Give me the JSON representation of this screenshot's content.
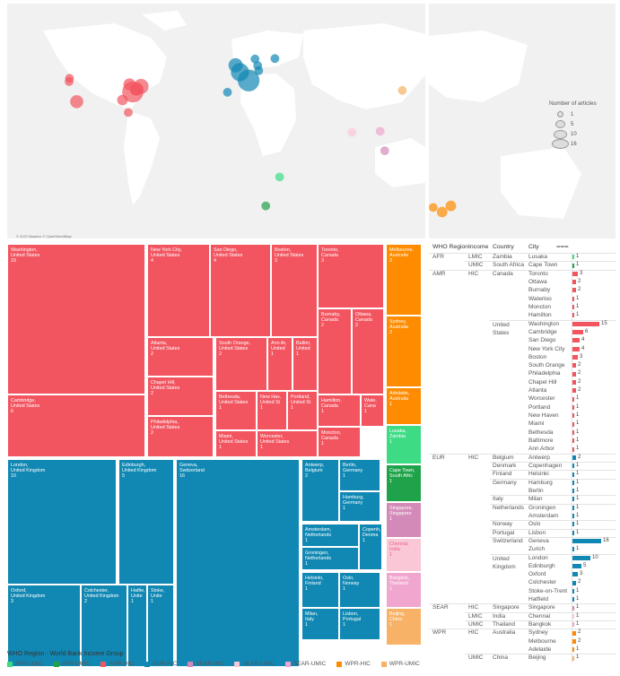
{
  "map": {
    "attribution": "© 2022 Mapbox © OpenStreetMap",
    "size_legend_title": "Number of articles",
    "size_legend_values": [
      "1",
      "5",
      "10",
      "16"
    ],
    "bubbles": [
      {
        "lon": -77.0,
        "lat": 38.9,
        "count": 15,
        "group": "AMR-HIC"
      },
      {
        "lon": -71.1,
        "lat": 42.4,
        "count": 6,
        "group": "AMR-HIC"
      },
      {
        "lon": -79.4,
        "lat": 43.7,
        "count": 3,
        "group": "AMR-HIC"
      },
      {
        "lon": -74.0,
        "lat": 40.7,
        "count": 4,
        "group": "AMR-HIC"
      },
      {
        "lon": -117.2,
        "lat": 32.7,
        "count": 4,
        "group": "AMR-HIC"
      },
      {
        "lon": -122.4,
        "lat": 47.6,
        "count": 1,
        "group": "AMR-HIC"
      },
      {
        "lon": -122.7,
        "lat": 45.5,
        "count": 1,
        "group": "AMR-HIC"
      },
      {
        "lon": -80.2,
        "lat": 25.8,
        "count": 1,
        "group": "AMR-HIC"
      },
      {
        "lon": -84.4,
        "lat": 33.7,
        "count": 2,
        "group": "AMR-HIC"
      },
      {
        "lon": -75.2,
        "lat": 40.0,
        "count": 2,
        "group": "AMR-HIC"
      },
      {
        "lon": 6.1,
        "lat": 46.2,
        "count": 16,
        "group": "EUR-HIC"
      },
      {
        "lon": -0.1,
        "lat": 51.5,
        "count": 10,
        "group": "EUR-HIC"
      },
      {
        "lon": -3.2,
        "lat": 55.9,
        "count": 5,
        "group": "EUR-HIC"
      },
      {
        "lon": 13.4,
        "lat": 52.5,
        "count": 1,
        "group": "EUR-HIC"
      },
      {
        "lon": 25.0,
        "lat": 60.2,
        "count": 1,
        "group": "EUR-HIC"
      },
      {
        "lon": 10.7,
        "lat": 59.9,
        "count": 1,
        "group": "EUR-HIC"
      },
      {
        "lon": 12.6,
        "lat": 55.7,
        "count": 1,
        "group": "EUR-HIC"
      },
      {
        "lon": -9.1,
        "lat": 38.7,
        "count": 1,
        "group": "EUR-HIC"
      },
      {
        "lon": 151.2,
        "lat": -33.9,
        "count": 2,
        "group": "WPR-HIC"
      },
      {
        "lon": 145.0,
        "lat": -37.8,
        "count": 2,
        "group": "WPR-HIC"
      },
      {
        "lon": 138.6,
        "lat": -34.9,
        "count": 1,
        "group": "WPR-HIC"
      },
      {
        "lon": 116.4,
        "lat": 39.9,
        "count": 1,
        "group": "WPR-UMIC"
      },
      {
        "lon": 103.8,
        "lat": 1.35,
        "count": 1,
        "group": "SEAR-HIC"
      },
      {
        "lon": 80.3,
        "lat": 13.1,
        "count": 1,
        "group": "SEAR-LMIC"
      },
      {
        "lon": 100.5,
        "lat": 13.8,
        "count": 1,
        "group": "SEAR-UMIC"
      },
      {
        "lon": 28.3,
        "lat": -15.4,
        "count": 1,
        "group": "AFR-LMIC"
      },
      {
        "lon": 18.4,
        "lat": -33.9,
        "count": 1,
        "group": "AFR-UMIC"
      }
    ]
  },
  "chart_data": [
    {
      "type": "treemap",
      "cells": [
        {
          "city": "Washington",
          "country": "United States",
          "count": 15,
          "group": "AMR-HIC"
        },
        {
          "city": "Cambridge",
          "country": "United States",
          "count": 6,
          "group": "AMR-HIC"
        },
        {
          "city": "New York City",
          "country": "United States",
          "count": 4,
          "group": "AMR-HIC"
        },
        {
          "city": "San Diego",
          "country": "United States",
          "count": 4,
          "group": "AMR-HIC"
        },
        {
          "city": "Boston",
          "country": "United States",
          "count": 3,
          "group": "AMR-HIC"
        },
        {
          "city": "Atlanta",
          "country": "United States",
          "count": 2,
          "group": "AMR-HIC"
        },
        {
          "city": "Chapel Hill",
          "country": "United States",
          "count": 2,
          "group": "AMR-HIC"
        },
        {
          "city": "Philadelphia",
          "country": "United States",
          "count": 2,
          "group": "AMR-HIC"
        },
        {
          "city": "South Orange",
          "country": "United States",
          "count": 2,
          "group": "AMR-HIC"
        },
        {
          "city": "Ann Ar",
          "country": "United",
          "count": 1,
          "group": "AMR-HIC"
        },
        {
          "city": "Baltim",
          "country": "United",
          "count": 1,
          "group": "AMR-HIC"
        },
        {
          "city": "Bethesda",
          "country": "United States",
          "count": 1,
          "group": "AMR-HIC"
        },
        {
          "city": "New Hav",
          "country": "United St",
          "count": 1,
          "group": "AMR-HIC"
        },
        {
          "city": "Portland",
          "country": "United St",
          "count": 1,
          "group": "AMR-HIC"
        },
        {
          "city": "Miami",
          "country": "United States",
          "count": 1,
          "group": "AMR-HIC"
        },
        {
          "city": "Worcester",
          "country": "United States",
          "count": 1,
          "group": "AMR-HIC"
        },
        {
          "city": "Toronto",
          "country": "Canada",
          "count": 3,
          "group": "AMR-HIC"
        },
        {
          "city": "Burnaby",
          "country": "Canada",
          "count": 2,
          "group": "AMR-HIC"
        },
        {
          "city": "Ottawa",
          "country": "Canada",
          "count": 2,
          "group": "AMR-HIC"
        },
        {
          "city": "Hamilton",
          "country": "Canada",
          "count": 1,
          "group": "AMR-HIC"
        },
        {
          "city": "Wate",
          "country": "Cana",
          "count": 1,
          "group": "AMR-HIC"
        },
        {
          "city": "Moncton",
          "country": "Canada",
          "count": 1,
          "group": "AMR-HIC"
        },
        {
          "city": "Melbourne",
          "country": "Australia",
          "count": 2,
          "group": "WPR-HIC"
        },
        {
          "city": "Sydney",
          "country": "Australia",
          "count": 2,
          "group": "WPR-HIC"
        },
        {
          "city": "Adelaide",
          "country": "Australia",
          "count": 1,
          "group": "WPR-HIC"
        },
        {
          "city": "Lusaka",
          "country": "Zambia",
          "count": 1,
          "group": "AFR-LMIC"
        },
        {
          "city": "Cape Town",
          "country": "South Afric",
          "count": 1,
          "group": "AFR-UMIC"
        },
        {
          "city": "London",
          "country": "United Kingdom",
          "count": 10,
          "group": "EUR-HIC"
        },
        {
          "city": "Edinburgh",
          "country": "United Kingdom",
          "count": 5,
          "group": "EUR-HIC"
        },
        {
          "city": "Oxford",
          "country": "United Kingdom",
          "count": 3,
          "group": "EUR-HIC"
        },
        {
          "city": "Colchester",
          "country": "United Kingdom",
          "count": 2,
          "group": "EUR-HIC"
        },
        {
          "city": "Hatfie",
          "country": "Unite",
          "count": 1,
          "group": "EUR-HIC"
        },
        {
          "city": "Stoke",
          "country": "Unite",
          "count": 1,
          "group": "EUR-HIC"
        },
        {
          "city": "Geneva",
          "country": "Switzerland",
          "count": 16,
          "group": "EUR-HIC"
        },
        {
          "city": "Antwerp",
          "country": "Belgium",
          "count": 2,
          "group": "EUR-HIC"
        },
        {
          "city": "Berlin",
          "country": "Germany",
          "count": 1,
          "group": "EUR-HIC"
        },
        {
          "city": "Hamburg",
          "country": "Germany",
          "count": 1,
          "group": "EUR-HIC"
        },
        {
          "city": "Amsterdam",
          "country": "Netherlands",
          "count": 1,
          "group": "EUR-HIC"
        },
        {
          "city": "Copenh",
          "country": "Denma",
          "count": 1,
          "group": "EUR-HIC"
        },
        {
          "city": "Groningen",
          "country": "Netherlands",
          "count": 1,
          "group": "EUR-HIC"
        },
        {
          "city": "Helsinki",
          "country": "Finland",
          "count": 1,
          "group": "EUR-HIC"
        },
        {
          "city": "Oslo",
          "country": "Norway",
          "count": 1,
          "group": "EUR-HIC"
        },
        {
          "city": "Milan",
          "country": "Italy",
          "count": 1,
          "group": "EUR-HIC"
        },
        {
          "city": "Lisbon",
          "country": "Portugal",
          "count": 1,
          "group": "EUR-HIC"
        },
        {
          "city": "Singapore",
          "country": "Singapore",
          "count": 1,
          "group": "SEAR-HIC"
        },
        {
          "city": "Chennai",
          "country": "India",
          "count": 1,
          "group": "SEAR-LMIC"
        },
        {
          "city": "Bangkok",
          "country": "Thailand",
          "count": 1,
          "group": "SEAR-UMIC"
        },
        {
          "city": "Beijing",
          "country": "China",
          "count": 1,
          "group": "WPR-UMIC"
        }
      ]
    },
    {
      "type": "bar",
      "orientation": "horizontal",
      "columns": [
        "WHO Region",
        "Income",
        "Country",
        "City"
      ],
      "rows": [
        {
          "region": "AFR",
          "income": "LMIC",
          "country": "Zambia",
          "city": "Lusaka",
          "value": 1,
          "group": "AFR-LMIC"
        },
        {
          "region": "",
          "income": "UMIC",
          "country": "South Africa",
          "city": "Cape Town",
          "value": 1,
          "group": "AFR-UMIC"
        },
        {
          "region": "AMR",
          "income": "HIC",
          "country": "Canada",
          "city": "Toronto",
          "value": 3,
          "group": "AMR-HIC"
        },
        {
          "region": "",
          "income": "",
          "country": "",
          "city": "Ottawa",
          "value": 2,
          "group": "AMR-HIC"
        },
        {
          "region": "",
          "income": "",
          "country": "",
          "city": "Burnaby",
          "value": 2,
          "group": "AMR-HIC"
        },
        {
          "region": "",
          "income": "",
          "country": "",
          "city": "Waterloo",
          "value": 1,
          "group": "AMR-HIC"
        },
        {
          "region": "",
          "income": "",
          "country": "",
          "city": "Moncton",
          "value": 1,
          "group": "AMR-HIC"
        },
        {
          "region": "",
          "income": "",
          "country": "",
          "city": "Hamilton",
          "value": 1,
          "group": "AMR-HIC"
        },
        {
          "region": "",
          "income": "",
          "country": "United States",
          "city": "Washington",
          "value": 15,
          "group": "AMR-HIC"
        },
        {
          "region": "",
          "income": "",
          "country": "",
          "city": "Cambridge",
          "value": 6,
          "group": "AMR-HIC"
        },
        {
          "region": "",
          "income": "",
          "country": "",
          "city": "San Diego",
          "value": 4,
          "group": "AMR-HIC"
        },
        {
          "region": "",
          "income": "",
          "country": "",
          "city": "New York City",
          "value": 4,
          "group": "AMR-HIC"
        },
        {
          "region": "",
          "income": "",
          "country": "",
          "city": "Boston",
          "value": 3,
          "group": "AMR-HIC"
        },
        {
          "region": "",
          "income": "",
          "country": "",
          "city": "South Orange",
          "value": 2,
          "group": "AMR-HIC"
        },
        {
          "region": "",
          "income": "",
          "country": "",
          "city": "Philadelphia",
          "value": 2,
          "group": "AMR-HIC"
        },
        {
          "region": "",
          "income": "",
          "country": "",
          "city": "Chapel Hill",
          "value": 2,
          "group": "AMR-HIC"
        },
        {
          "region": "",
          "income": "",
          "country": "",
          "city": "Atlanta",
          "value": 2,
          "group": "AMR-HIC"
        },
        {
          "region": "",
          "income": "",
          "country": "",
          "city": "Worcester",
          "value": 1,
          "group": "AMR-HIC"
        },
        {
          "region": "",
          "income": "",
          "country": "",
          "city": "Portland",
          "value": 1,
          "group": "AMR-HIC"
        },
        {
          "region": "",
          "income": "",
          "country": "",
          "city": "New Haven",
          "value": 1,
          "group": "AMR-HIC"
        },
        {
          "region": "",
          "income": "",
          "country": "",
          "city": "Miami",
          "value": 1,
          "group": "AMR-HIC"
        },
        {
          "region": "",
          "income": "",
          "country": "",
          "city": "Bethesda",
          "value": 1,
          "group": "AMR-HIC"
        },
        {
          "region": "",
          "income": "",
          "country": "",
          "city": "Baltimore",
          "value": 1,
          "group": "AMR-HIC"
        },
        {
          "region": "",
          "income": "",
          "country": "",
          "city": "Ann Arbor",
          "value": 1,
          "group": "AMR-HIC"
        },
        {
          "region": "EUR",
          "income": "HIC",
          "country": "Belgium",
          "city": "Antwerp",
          "value": 2,
          "group": "EUR-HIC"
        },
        {
          "region": "",
          "income": "",
          "country": "Denmark",
          "city": "Copenhagen",
          "value": 1,
          "group": "EUR-HIC"
        },
        {
          "region": "",
          "income": "",
          "country": "Finland",
          "city": "Helsinki",
          "value": 1,
          "group": "EUR-HIC"
        },
        {
          "region": "",
          "income": "",
          "country": "Germany",
          "city": "Hamburg",
          "value": 1,
          "group": "EUR-HIC"
        },
        {
          "region": "",
          "income": "",
          "country": "",
          "city": "Berlin",
          "value": 1,
          "group": "EUR-HIC"
        },
        {
          "region": "",
          "income": "",
          "country": "Italy",
          "city": "Milan",
          "value": 1,
          "group": "EUR-HIC"
        },
        {
          "region": "",
          "income": "",
          "country": "Netherlands",
          "city": "Groningen",
          "value": 1,
          "group": "EUR-HIC"
        },
        {
          "region": "",
          "income": "",
          "country": "",
          "city": "Amsterdam",
          "value": 1,
          "group": "EUR-HIC"
        },
        {
          "region": "",
          "income": "",
          "country": "Norway",
          "city": "Oslo",
          "value": 1,
          "group": "EUR-HIC"
        },
        {
          "region": "",
          "income": "",
          "country": "Portugal",
          "city": "Lisbon",
          "value": 1,
          "group": "EUR-HIC"
        },
        {
          "region": "",
          "income": "",
          "country": "Switzerland",
          "city": "Geneva",
          "value": 16,
          "group": "EUR-HIC"
        },
        {
          "region": "",
          "income": "",
          "country": "",
          "city": "Zurich",
          "value": 1,
          "group": "EUR-HIC"
        },
        {
          "region": "",
          "income": "",
          "country": "United Kingdom",
          "city": "London",
          "value": 10,
          "group": "EUR-HIC"
        },
        {
          "region": "",
          "income": "",
          "country": "",
          "city": "Edinburgh",
          "value": 5,
          "group": "EUR-HIC"
        },
        {
          "region": "",
          "income": "",
          "country": "",
          "city": "Oxford",
          "value": 3,
          "group": "EUR-HIC"
        },
        {
          "region": "",
          "income": "",
          "country": "",
          "city": "Colchester",
          "value": 2,
          "group": "EUR-HIC"
        },
        {
          "region": "",
          "income": "",
          "country": "",
          "city": "Stoke-on-Trent",
          "value": 1,
          "group": "EUR-HIC"
        },
        {
          "region": "",
          "income": "",
          "country": "",
          "city": "Hatfield",
          "value": 1,
          "group": "EUR-HIC"
        },
        {
          "region": "SEAR",
          "income": "HIC",
          "country": "Singapore",
          "city": "Singapore",
          "value": 1,
          "group": "SEAR-HIC"
        },
        {
          "region": "",
          "income": "LMIC",
          "country": "India",
          "city": "Chennai",
          "value": 1,
          "group": "SEAR-LMIC"
        },
        {
          "region": "",
          "income": "UMIC",
          "country": "Thailand",
          "city": "Bangkok",
          "value": 1,
          "group": "SEAR-UMIC"
        },
        {
          "region": "WPR",
          "income": "HIC",
          "country": "Australia",
          "city": "Sydney",
          "value": 2,
          "group": "WPR-HIC"
        },
        {
          "region": "",
          "income": "",
          "country": "",
          "city": "Melbourne",
          "value": 2,
          "group": "WPR-HIC"
        },
        {
          "region": "",
          "income": "",
          "country": "",
          "city": "Adelaide",
          "value": 1,
          "group": "WPR-HIC"
        },
        {
          "region": "",
          "income": "UMIC",
          "country": "China",
          "city": "Beijing",
          "value": 1,
          "group": "WPR-UMIC"
        }
      ]
    }
  ],
  "legend": {
    "title": "WHO Region - World Bank Income Group",
    "items": [
      "AFR-LMIC",
      "AFR-UMIC",
      "AMR-HIC",
      "EUR-HIC",
      "SEAR-HIC",
      "SEAR-LMIC",
      "SEAR-UMIC",
      "WPR-HIC",
      "WPR-UMIC"
    ]
  },
  "colors": {
    "AFR-LMIC": "#3ddc84",
    "AFR-UMIC": "#1fa34a",
    "AMR-HIC": "#f25560",
    "EUR-HIC": "#1188b3",
    "SEAR-HIC": "#d48ab8",
    "SEAR-LMIC": "#f9c7d6",
    "SEAR-UMIC": "#f0a6cf",
    "WPR-HIC": "#ff8c00",
    "WPR-UMIC": "#f7b267"
  }
}
